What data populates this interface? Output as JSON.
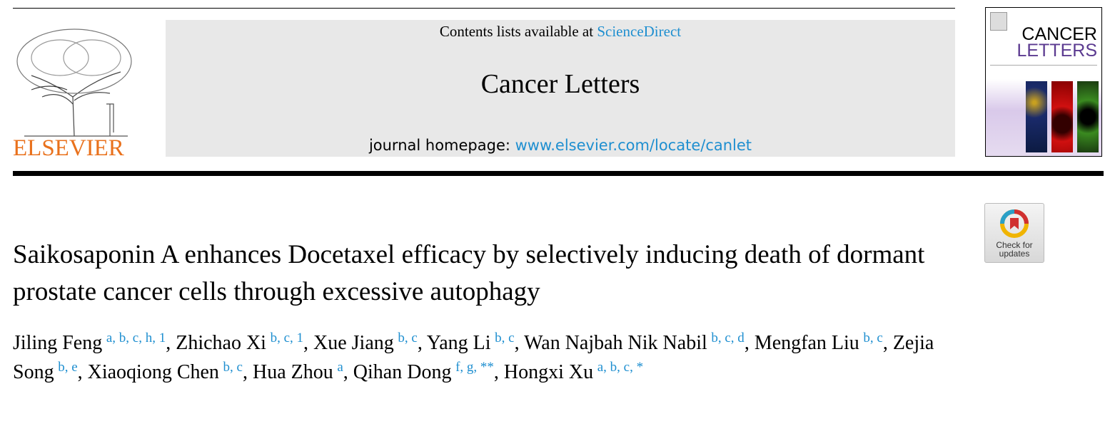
{
  "header": {
    "contents_prefix": "Contents lists available at ",
    "contents_link": "ScienceDirect",
    "journal_name": "Cancer Letters",
    "homepage_prefix": "journal homepage: ",
    "homepage_link": "www.elsevier.com/locate/canlet",
    "publisher_logo": "ELSEVIER",
    "cover": {
      "line1": "CANCER",
      "line2": "LETTERS"
    },
    "check_updates": "Check for updates"
  },
  "colors": {
    "link": "#1f8fd0",
    "elsevier": "#e9711c",
    "cover_purple": "#5b3a90"
  },
  "article": {
    "title": "Saikosaponin A enhances Docetaxel efficacy by selectively inducing death of dormant prostate cancer cells through excessive autophagy",
    "authors": [
      {
        "name": "Jiling Feng",
        "sup": "a, b, c, h, 1"
      },
      {
        "name": "Zhichao Xi",
        "sup": "b, c, 1"
      },
      {
        "name": "Xue Jiang",
        "sup": "b, c"
      },
      {
        "name": "Yang Li",
        "sup": "b, c"
      },
      {
        "name": "Wan Najbah Nik Nabil",
        "sup": "b, c, d"
      },
      {
        "name": "Mengfan Liu",
        "sup": "b, c"
      },
      {
        "name": "Zejia Song",
        "sup": "b, e"
      },
      {
        "name": "Xiaoqiong Chen",
        "sup": "b, c"
      },
      {
        "name": "Hua Zhou",
        "sup": "a"
      },
      {
        "name": "Qihan Dong",
        "sup": "f, g, **"
      },
      {
        "name": "Hongxi Xu",
        "sup": "a, b, c, *"
      }
    ]
  }
}
